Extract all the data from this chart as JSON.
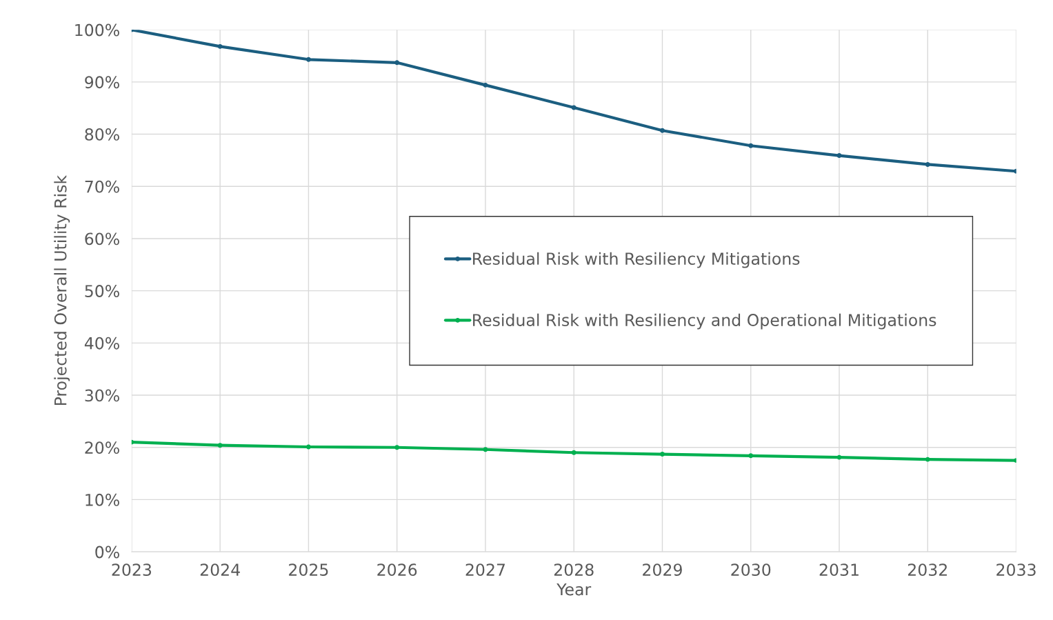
{
  "chart_data": {
    "type": "line",
    "xlabel": "Year",
    "ylabel": "Projected Overall Utility Risk",
    "x": [
      2023,
      2024,
      2025,
      2026,
      2027,
      2028,
      2029,
      2030,
      2031,
      2032,
      2033
    ],
    "series": [
      {
        "name": "Residual Risk with Resiliency Mitigations",
        "color": "#1b5e80",
        "values": [
          100,
          96.8,
          94.3,
          93.7,
          89.4,
          85.1,
          80.7,
          77.8,
          75.9,
          74.2,
          72.9
        ]
      },
      {
        "name": "Residual Risk with Resiliency and Operational Mitigations",
        "color": "#00b050",
        "values": [
          21.0,
          20.4,
          20.1,
          20.0,
          19.6,
          19.0,
          18.7,
          18.4,
          18.1,
          17.7,
          17.5
        ]
      }
    ],
    "xlim": [
      2023,
      2033
    ],
    "xticks": [
      2023,
      2024,
      2025,
      2026,
      2027,
      2028,
      2029,
      2030,
      2031,
      2032,
      2033
    ],
    "ylim": [
      0,
      100
    ],
    "yticks": [
      {
        "value": 0,
        "label": "0%"
      },
      {
        "value": 10,
        "label": "10%"
      },
      {
        "value": 20,
        "label": "20%"
      },
      {
        "value": 30,
        "label": "30%"
      },
      {
        "value": 40,
        "label": "40%"
      },
      {
        "value": 50,
        "label": "50%"
      },
      {
        "value": 60,
        "label": "60%"
      },
      {
        "value": 70,
        "label": "70%"
      },
      {
        "value": 80,
        "label": "80%"
      },
      {
        "value": 90,
        "label": "90%"
      },
      {
        "value": 100,
        "label": "100%"
      }
    ],
    "grid": true,
    "legend": "right",
    "marker": "circle",
    "line_style": "solid"
  }
}
